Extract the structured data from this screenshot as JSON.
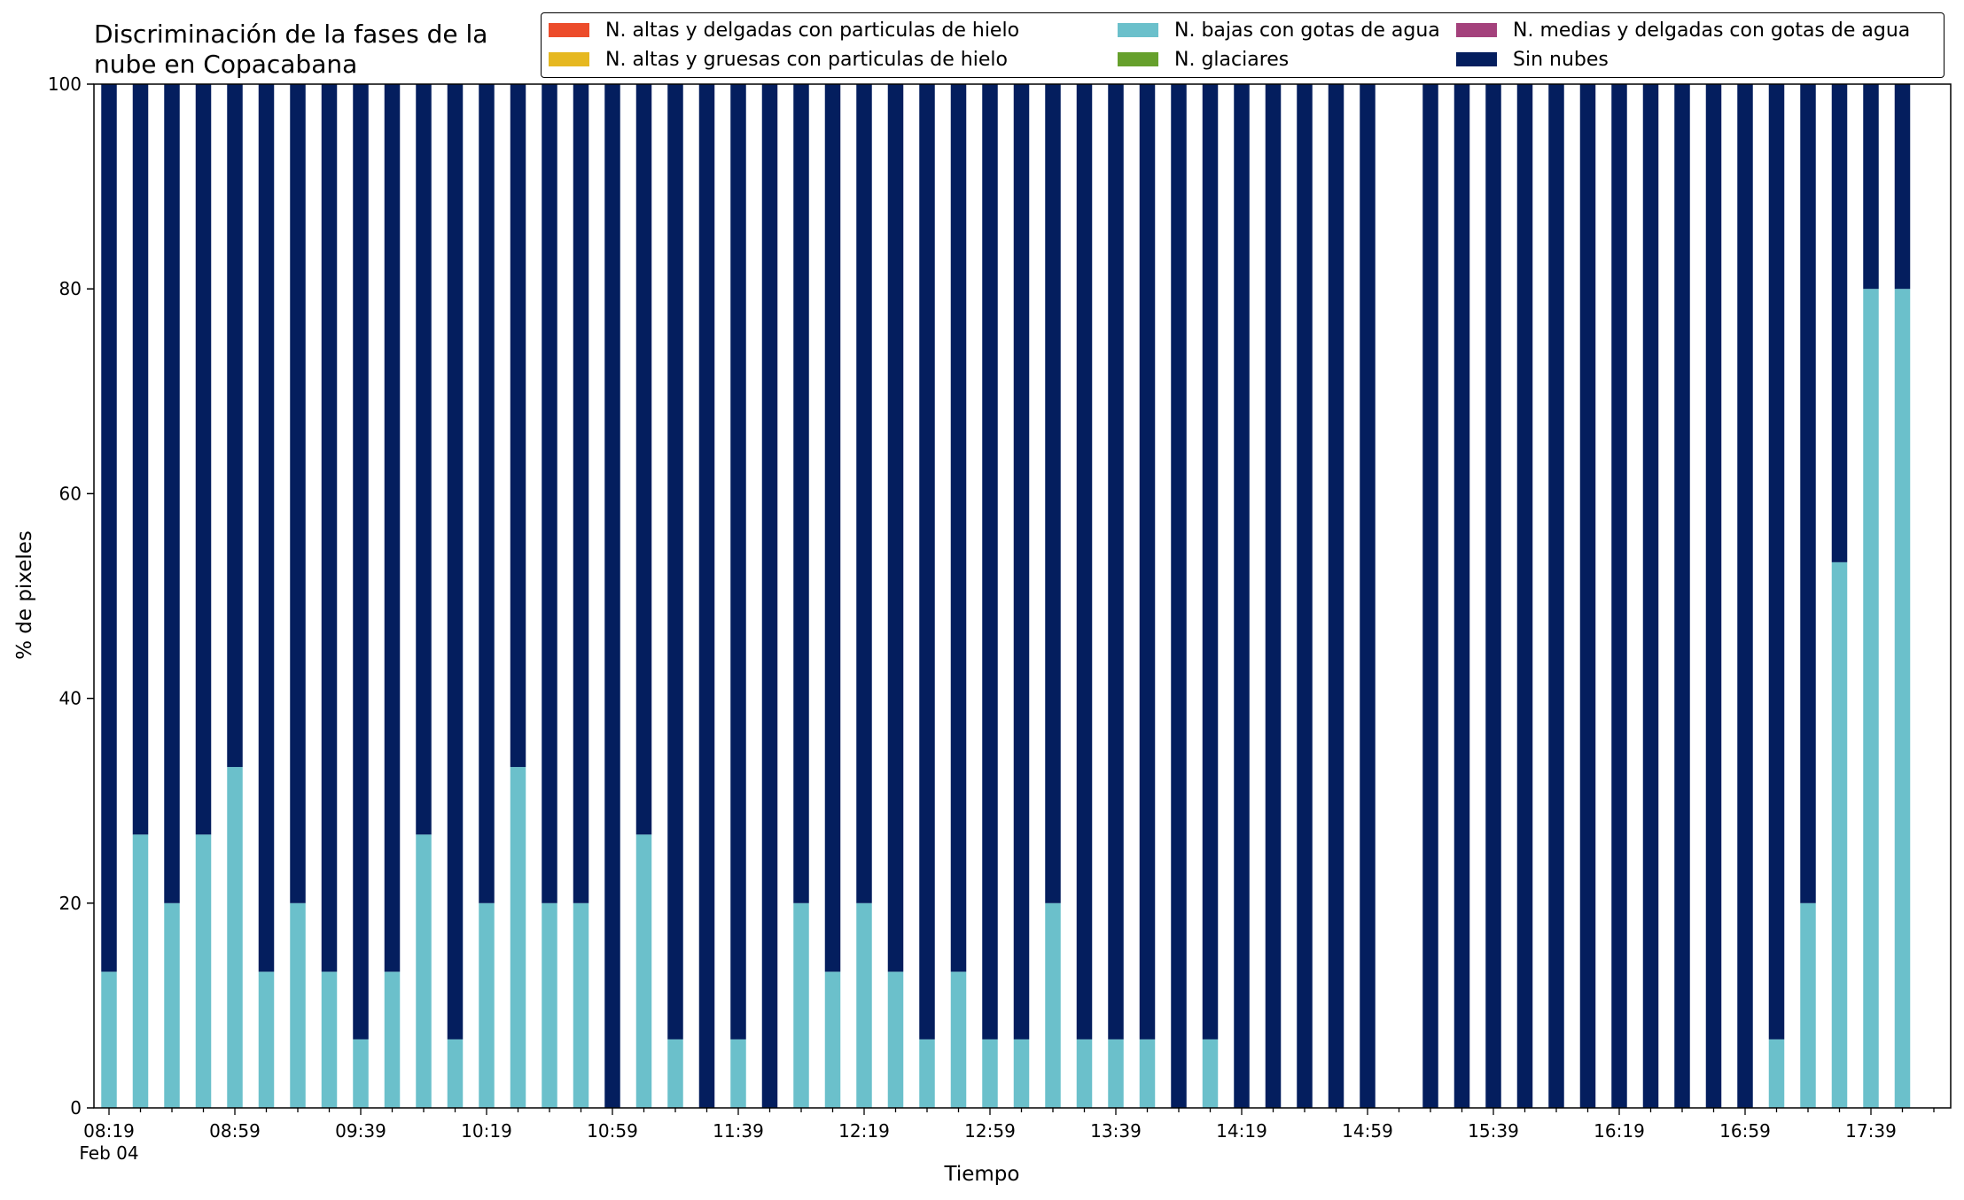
{
  "chart_data": {
    "type": "bar",
    "stacked": true,
    "title": "Discriminación de la fases de la\nnube en Copacabana",
    "xlabel": "Tiempo",
    "ylabel": "% de pixeles",
    "ylim": [
      0,
      100
    ],
    "yticks": [
      "0",
      "20",
      "40",
      "60",
      "80",
      "100"
    ],
    "xtick_labels": [
      "08:19",
      "08:59",
      "09:39",
      "10:19",
      "10:59",
      "11:39",
      "12:19",
      "12:59",
      "13:39",
      "14:19",
      "14:59",
      "15:39",
      "16:19",
      "16:59",
      "17:39"
    ],
    "xtick_sublabel": "Feb 04",
    "grid": false,
    "legend_position": "top-right",
    "categories": [
      "08:19",
      "08:29",
      "08:39",
      "08:49",
      "08:59",
      "09:09",
      "09:19",
      "09:29",
      "09:39",
      "09:49",
      "09:59",
      "10:09",
      "10:19",
      "10:29",
      "10:39",
      "10:49",
      "10:59",
      "11:09",
      "11:19",
      "11:29",
      "11:39",
      "11:49",
      "11:59",
      "12:09",
      "12:19",
      "12:29",
      "12:39",
      "12:49",
      "12:59",
      "13:09",
      "13:19",
      "13:29",
      "13:39",
      "13:49",
      "13:59",
      "14:09",
      "14:19",
      "14:29",
      "14:39",
      "14:49",
      "14:59",
      "15:09",
      "15:19",
      "15:29",
      "15:39",
      "15:49",
      "15:59",
      "16:09",
      "16:19",
      "16:29",
      "16:39",
      "16:49",
      "16:59",
      "17:09",
      "17:19",
      "17:29",
      "17:39",
      "17:49"
    ],
    "series": [
      {
        "name": "N. altas y delgadas con particulas de hielo",
        "color": "#ec4c2b",
        "values": [
          0,
          0,
          0,
          0,
          0,
          0,
          0,
          0,
          0,
          0,
          0,
          0,
          0,
          0,
          0,
          0,
          0,
          0,
          0,
          0,
          0,
          0,
          0,
          0,
          0,
          0,
          0,
          0,
          0,
          0,
          0,
          0,
          0,
          0,
          0,
          0,
          0,
          0,
          0,
          0,
          0,
          0,
          0,
          0,
          0,
          0,
          0,
          0,
          0,
          0,
          0,
          0,
          0,
          0,
          0,
          0,
          0,
          0
        ]
      },
      {
        "name": "N. altas y gruesas con particulas de hielo",
        "color": "#e6b820",
        "values": [
          0,
          0,
          0,
          0,
          0,
          0,
          0,
          0,
          0,
          0,
          0,
          0,
          0,
          0,
          0,
          0,
          0,
          0,
          0,
          0,
          0,
          0,
          0,
          0,
          0,
          0,
          0,
          0,
          0,
          0,
          0,
          0,
          0,
          0,
          0,
          0,
          0,
          0,
          0,
          0,
          0,
          0,
          0,
          0,
          0,
          0,
          0,
          0,
          0,
          0,
          0,
          0,
          0,
          0,
          0,
          0,
          0,
          0
        ]
      },
      {
        "name": "N. bajas con gotas de agua",
        "color": "#6bc0cb",
        "values": [
          13.3,
          26.7,
          20,
          26.7,
          33.3,
          13.3,
          20,
          13.3,
          6.7,
          13.3,
          26.7,
          6.7,
          20,
          33.3,
          20,
          20,
          0,
          26.7,
          6.7,
          0,
          6.7,
          0,
          20,
          13.3,
          20,
          13.3,
          6.7,
          13.3,
          6.7,
          6.7,
          20,
          6.7,
          6.7,
          6.7,
          0,
          6.7,
          0,
          0,
          0,
          0,
          0,
          null,
          0,
          0,
          0,
          0,
          0,
          0,
          0,
          0,
          0,
          0,
          0,
          6.7,
          20,
          53.3,
          80,
          80
        ]
      },
      {
        "name": "N. glaciares",
        "color": "#66a02c",
        "values": [
          0,
          0,
          0,
          0,
          0,
          0,
          0,
          0,
          0,
          0,
          0,
          0,
          0,
          0,
          0,
          0,
          0,
          0,
          0,
          0,
          0,
          0,
          0,
          0,
          0,
          0,
          0,
          0,
          0,
          0,
          0,
          0,
          0,
          0,
          0,
          0,
          0,
          0,
          0,
          0,
          0,
          0,
          0,
          0,
          0,
          0,
          0,
          0,
          0,
          0,
          0,
          0,
          0,
          0,
          0,
          0,
          0,
          0
        ]
      },
      {
        "name": "N. medias y delgadas con gotas de agua",
        "color": "#a4417c",
        "values": [
          0,
          0,
          0,
          0,
          0,
          0,
          0,
          0,
          0,
          0,
          0,
          0,
          0,
          0,
          0,
          0,
          0,
          0,
          0,
          0,
          0,
          0,
          0,
          0,
          0,
          0,
          0,
          0,
          0,
          0,
          0,
          0,
          0,
          0,
          0,
          0,
          0,
          0,
          0,
          0,
          0,
          0,
          0,
          0,
          0,
          0,
          0,
          0,
          0,
          0,
          0,
          0,
          0,
          0,
          0,
          0,
          0,
          0
        ]
      },
      {
        "name": "Sin nubes",
        "color": "#041e5e",
        "values": [
          86.7,
          73.3,
          80,
          73.3,
          66.7,
          86.7,
          80,
          86.7,
          93.3,
          86.7,
          73.3,
          93.3,
          80,
          66.7,
          80,
          80,
          100,
          73.3,
          93.3,
          100,
          93.3,
          100,
          80,
          86.7,
          80,
          86.7,
          93.3,
          86.7,
          93.3,
          93.3,
          80,
          93.3,
          93.3,
          93.3,
          100,
          93.3,
          100,
          100,
          100,
          100,
          100,
          null,
          100,
          100,
          100,
          100,
          100,
          100,
          100,
          100,
          100,
          100,
          100,
          93.3,
          80,
          46.7,
          20,
          20
        ]
      }
    ]
  }
}
